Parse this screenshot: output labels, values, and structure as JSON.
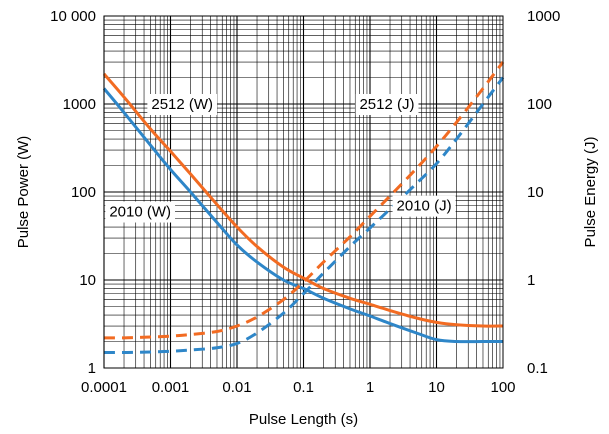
{
  "chart_data": {
    "type": "line",
    "xlabel": "Pulse Length (s)",
    "ylabel": "Pulse Power (W)",
    "y2label": "Pulse Energy (J)",
    "xscale": "log",
    "yscale": "log",
    "y2scale": "log",
    "xlim": [
      0.0001,
      100
    ],
    "ylim": [
      1,
      10000
    ],
    "y2lim": [
      0.1,
      1000
    ],
    "grid": true,
    "x_ticks": [
      {
        "value": 0.0001,
        "label": "0.0001"
      },
      {
        "value": 0.001,
        "label": "0.001"
      },
      {
        "value": 0.01,
        "label": "0.01"
      },
      {
        "value": 0.1,
        "label": "0.1"
      },
      {
        "value": 1,
        "label": "1"
      },
      {
        "value": 10,
        "label": "10"
      },
      {
        "value": 100,
        "label": "100"
      }
    ],
    "y_ticks": [
      {
        "value": 1,
        "label": "1"
      },
      {
        "value": 10,
        "label": "10"
      },
      {
        "value": 100,
        "label": "100"
      },
      {
        "value": 1000,
        "label": "1000"
      },
      {
        "value": 10000,
        "label": "10 000"
      }
    ],
    "y2_ticks": [
      {
        "value": 0.1,
        "label": "0.1"
      },
      {
        "value": 1,
        "label": "1"
      },
      {
        "value": 10,
        "label": "10"
      },
      {
        "value": 100,
        "label": "100"
      },
      {
        "value": 1000,
        "label": "1000"
      }
    ],
    "series": [
      {
        "name": "2512 (W)",
        "color": "#F26B22",
        "dash": false,
        "axis": "left",
        "x": [
          0.0001,
          0.0002,
          0.0005,
          0.001,
          0.002,
          0.005,
          0.01,
          0.02,
          0.05,
          0.1,
          0.2,
          0.5,
          1,
          2,
          5,
          10,
          20,
          50,
          100
        ],
        "y": [
          2200,
          1200,
          520,
          290,
          160,
          72,
          40,
          24,
          14,
          10.5,
          8,
          6.2,
          5.3,
          4.5,
          3.7,
          3.3,
          3.1,
          3.0,
          3.0
        ]
      },
      {
        "name": "2010 (W)",
        "color": "#2E86C8",
        "dash": false,
        "axis": "left",
        "x": [
          0.0001,
          0.0002,
          0.0005,
          0.001,
          0.002,
          0.005,
          0.01,
          0.02,
          0.05,
          0.1,
          0.2,
          0.5,
          1,
          2,
          5,
          10,
          20,
          50,
          100
        ],
        "y": [
          1500,
          800,
          340,
          180,
          100,
          45,
          25,
          16,
          10,
          8,
          6.2,
          4.7,
          3.9,
          3.2,
          2.5,
          2.1,
          2.0,
          2.0,
          2.0
        ]
      },
      {
        "name": "2512 (J)",
        "color": "#F26B22",
        "dash": true,
        "axis": "right",
        "x": [
          0.0001,
          0.0002,
          0.0005,
          0.001,
          0.002,
          0.005,
          0.01,
          0.02,
          0.05,
          0.1,
          0.2,
          0.5,
          1,
          2,
          5,
          10,
          20,
          50,
          100
        ],
        "y": [
          0.22,
          0.22,
          0.225,
          0.23,
          0.24,
          0.26,
          0.3,
          0.38,
          0.6,
          0.95,
          1.6,
          3.1,
          5.3,
          9,
          18.5,
          33,
          62,
          150,
          300
        ]
      },
      {
        "name": "2010 (J)",
        "color": "#2E86C8",
        "dash": true,
        "axis": "right",
        "x": [
          0.0001,
          0.0002,
          0.0005,
          0.001,
          0.002,
          0.005,
          0.01,
          0.02,
          0.05,
          0.1,
          0.2,
          0.5,
          1,
          2,
          5,
          10,
          20,
          50,
          100
        ],
        "y": [
          0.15,
          0.15,
          0.152,
          0.155,
          0.16,
          0.17,
          0.19,
          0.25,
          0.42,
          0.7,
          1.2,
          2.4,
          3.9,
          6.4,
          12.5,
          21,
          40,
          100,
          200
        ]
      }
    ],
    "labels": [
      {
        "text": "2512 (W)",
        "x": 0.0015,
        "y": 1000,
        "axis": "left"
      },
      {
        "text": "2010 (W)",
        "x": 0.00035,
        "y": 60,
        "axis": "left"
      },
      {
        "text": "2512 (J)",
        "x": 1.8,
        "y": 100,
        "axis": "right"
      },
      {
        "text": "2010 (J)",
        "x": 6.5,
        "y": 7,
        "axis": "right"
      }
    ]
  }
}
